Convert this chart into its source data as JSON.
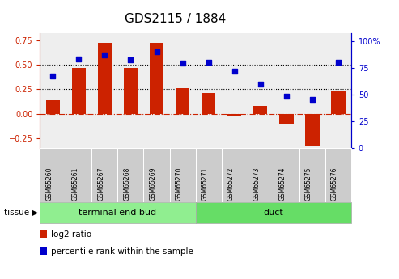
{
  "title": "GDS2115 / 1884",
  "samples": [
    "GSM65260",
    "GSM65261",
    "GSM65267",
    "GSM65268",
    "GSM65269",
    "GSM65270",
    "GSM65271",
    "GSM65272",
    "GSM65273",
    "GSM65274",
    "GSM65275",
    "GSM65276"
  ],
  "log2_ratio": [
    0.14,
    0.47,
    0.72,
    0.47,
    0.72,
    0.26,
    0.21,
    -0.02,
    0.08,
    -0.1,
    -0.33,
    0.23
  ],
  "percentile_rank": [
    67,
    83,
    87,
    82,
    90,
    79,
    80,
    72,
    60,
    48,
    45,
    80
  ],
  "bar_color": "#cc2200",
  "dot_color": "#0000cc",
  "ylim_left": [
    -0.35,
    0.82
  ],
  "yticks_left": [
    -0.25,
    0.0,
    0.25,
    0.5,
    0.75
  ],
  "ylim_right": [
    0,
    107
  ],
  "yticks_right": [
    0,
    25,
    50,
    75,
    100
  ],
  "ytick_labels_right": [
    "0",
    "25",
    "50",
    "75",
    "100%"
  ],
  "hlines": [
    0.25,
    0.5
  ],
  "title_fontsize": 11,
  "axis_color_left": "#cc2200",
  "axis_color_right": "#0000cc",
  "tissue_groups": [
    {
      "label": "terminal end bud",
      "n": 6,
      "color": "#90ee90"
    },
    {
      "label": "duct",
      "n": 6,
      "color": "#66dd66"
    }
  ],
  "tissue_label": "tissue",
  "plot_bg_color": "#eeeeee"
}
